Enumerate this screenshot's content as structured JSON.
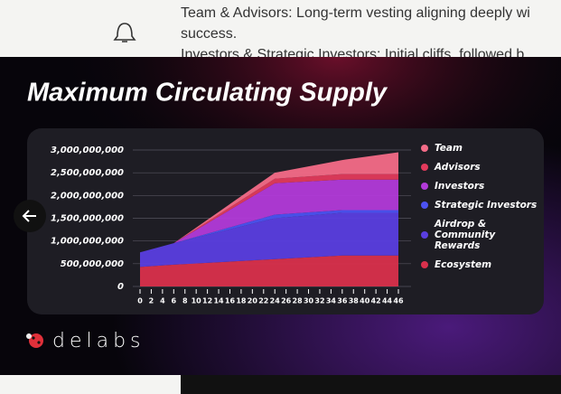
{
  "background_text": [
    "Team & Advisors: Long-term vesting aligning deeply wi",
    "success.",
    "Investors & Strategic Investors: Initial cliffs, followed b"
  ],
  "logo": "delabs",
  "chart_data": {
    "type": "stacked_area",
    "title": "Maximum Circulating Supply",
    "x": [
      0,
      6,
      24,
      36,
      46
    ],
    "series": [
      {
        "name": "Ecosystem",
        "color": "#d9304c",
        "values": [
          430000000,
          480000000,
          600000000,
          680000000,
          680000000
        ]
      },
      {
        "name": "Airdrop & Community Rewards",
        "color": "#5a3ee0",
        "values": [
          320000000,
          470000000,
          900000000,
          940000000,
          940000000
        ]
      },
      {
        "name": "Strategic Investors",
        "color": "#4c52f2",
        "values": [
          0,
          0,
          80000000,
          60000000,
          60000000
        ]
      },
      {
        "name": "Investors",
        "color": "#b23ad9",
        "values": [
          0,
          0,
          690000000,
          670000000,
          670000000
        ]
      },
      {
        "name": "Advisors",
        "color": "#e23a5c",
        "values": [
          0,
          0,
          100000000,
          120000000,
          120000000
        ]
      },
      {
        "name": "Team",
        "color": "#f46c88",
        "values": [
          0,
          0,
          130000000,
          310000000,
          480000000
        ]
      }
    ],
    "xlim": [
      0,
      46
    ],
    "xticks": [
      0,
      2,
      4,
      6,
      8,
      10,
      12,
      14,
      16,
      18,
      20,
      22,
      24,
      26,
      28,
      30,
      32,
      34,
      36,
      38,
      40,
      42,
      44,
      46
    ],
    "ylim": [
      0,
      3000000000
    ],
    "yticks": [
      {
        "value": 0,
        "label": "0"
      },
      {
        "value": 500000000,
        "label": "500,000,000"
      },
      {
        "value": 1000000000,
        "label": "1,000,000,000"
      },
      {
        "value": 1500000000,
        "label": "1,500,000,000"
      },
      {
        "value": 2000000000,
        "label": "2,000,000,000"
      },
      {
        "value": 2500000000,
        "label": "2,500,000,000"
      },
      {
        "value": 3000000000,
        "label": "3,000,000,000"
      }
    ],
    "grid": true
  }
}
